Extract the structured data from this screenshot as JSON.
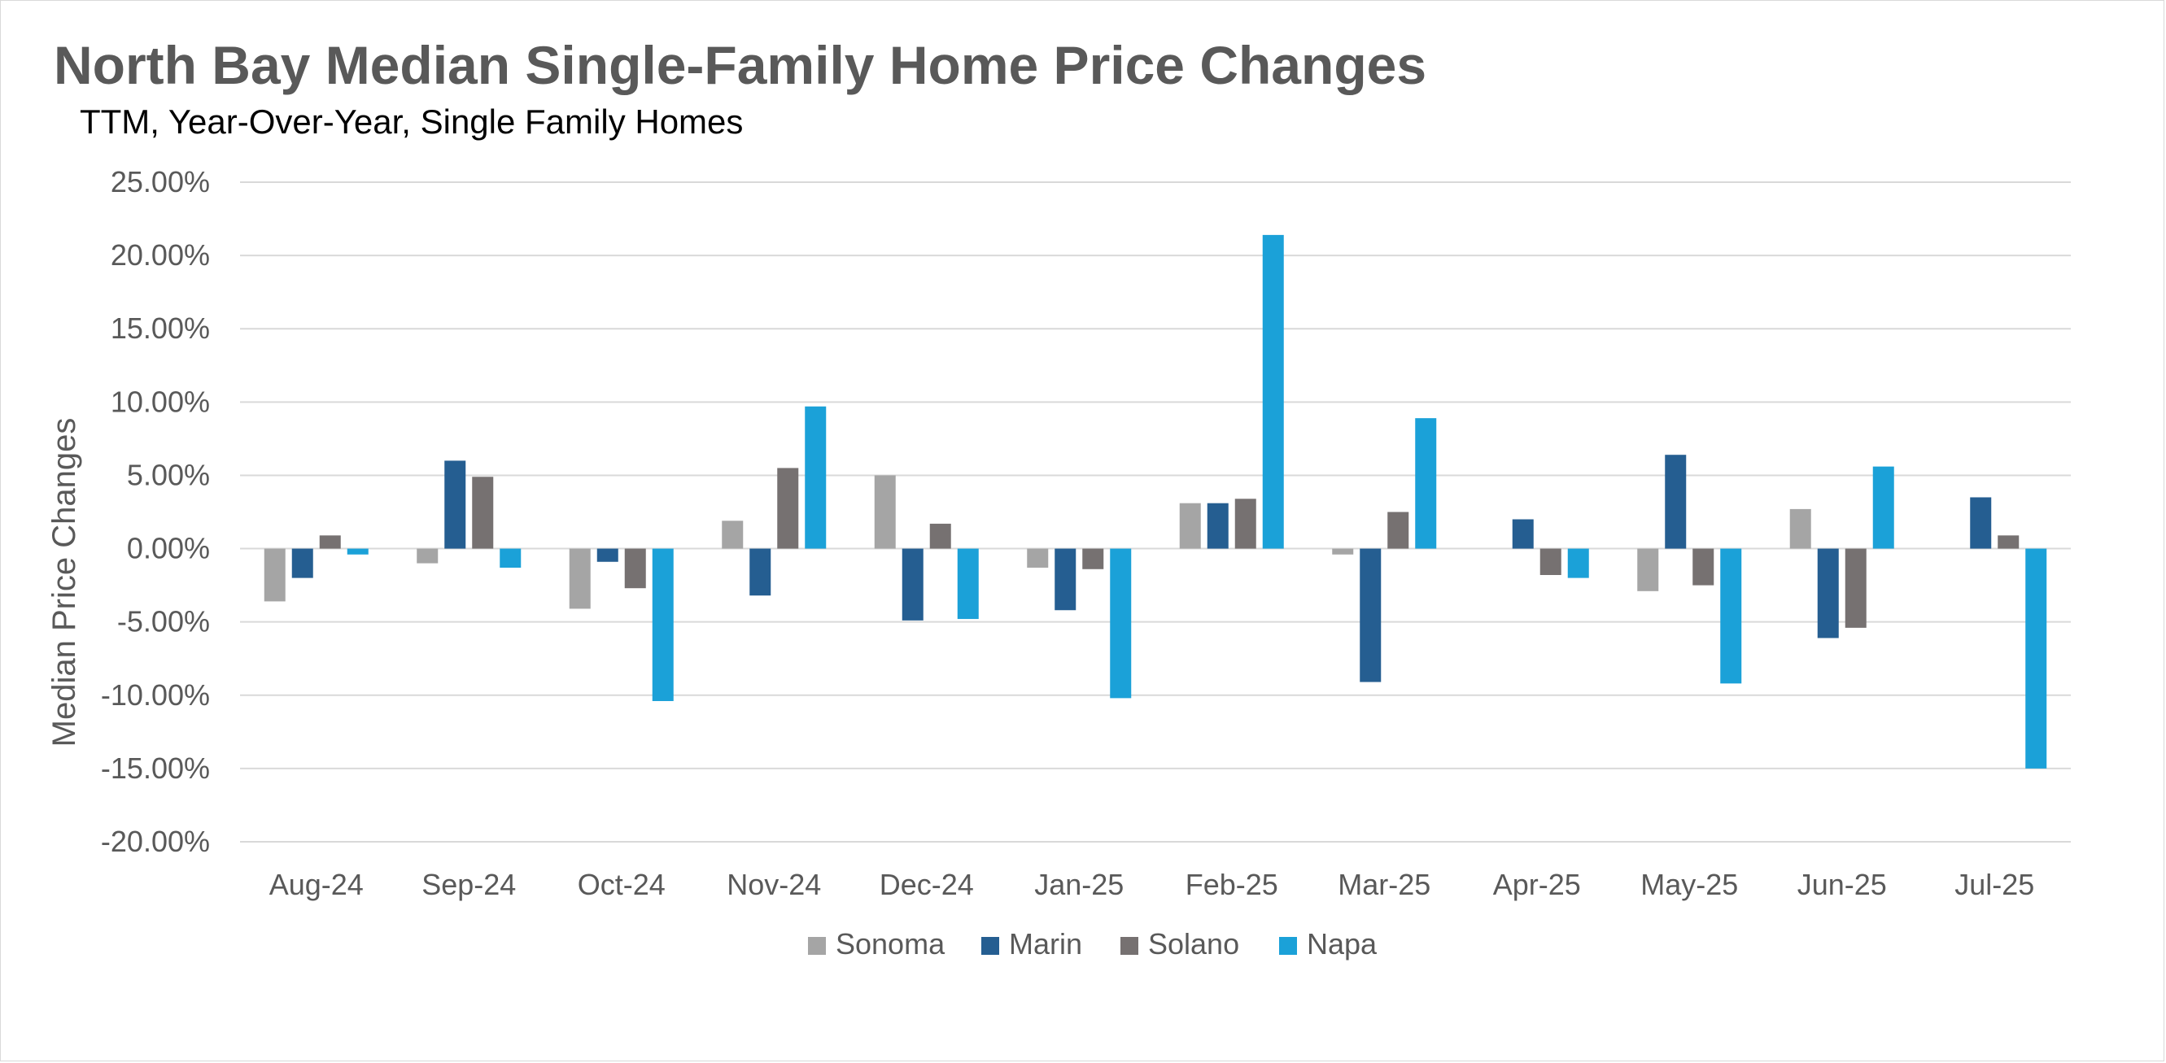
{
  "chart_data": {
    "type": "bar",
    "title": "North Bay Median Single-Family Home Price Changes",
    "subtitle": "TTM, Year-Over-Year, Single Family Homes",
    "xlabel": "",
    "ylabel": "Median Price Changes",
    "ylim": [
      -20,
      25
    ],
    "yticks": [
      25,
      20,
      15,
      10,
      5,
      0,
      -5,
      -10,
      -15,
      -20
    ],
    "ytick_labels": [
      "25.00%",
      "20.00%",
      "15.00%",
      "10.00%",
      "5.00%",
      "0.00%",
      "-5.00%",
      "-10.00%",
      "-15.00%",
      "-20.00%"
    ],
    "grid": true,
    "legend_position": "bottom",
    "categories": [
      "Aug-24",
      "Sep-24",
      "Oct-24",
      "Nov-24",
      "Dec-24",
      "Jan-25",
      "Feb-25",
      "Mar-25",
      "Apr-25",
      "May-25",
      "Jun-25",
      "Jul-25"
    ],
    "series": [
      {
        "name": "Sonoma",
        "color": "#a5a5a5",
        "values": [
          -3.6,
          -1.0,
          -4.1,
          1.9,
          5.0,
          -1.3,
          3.1,
          -0.4,
          0.0,
          -2.9,
          2.7,
          0.0
        ]
      },
      {
        "name": "Marin",
        "color": "#255e91",
        "values": [
          -2.0,
          6.0,
          -0.9,
          -3.2,
          -4.9,
          -4.2,
          3.1,
          -9.1,
          2.0,
          6.4,
          -6.1,
          3.5
        ]
      },
      {
        "name": "Solano",
        "color": "#767171",
        "values": [
          0.9,
          4.9,
          -2.7,
          5.5,
          1.7,
          -1.4,
          3.4,
          2.5,
          -1.8,
          -2.5,
          -5.4,
          0.9
        ]
      },
      {
        "name": "Napa",
        "color": "#1ba1d8",
        "values": [
          -0.4,
          -1.3,
          -10.4,
          9.7,
          -4.8,
          -10.2,
          21.4,
          8.9,
          -2.0,
          -9.2,
          5.6,
          -15.0
        ]
      }
    ]
  }
}
